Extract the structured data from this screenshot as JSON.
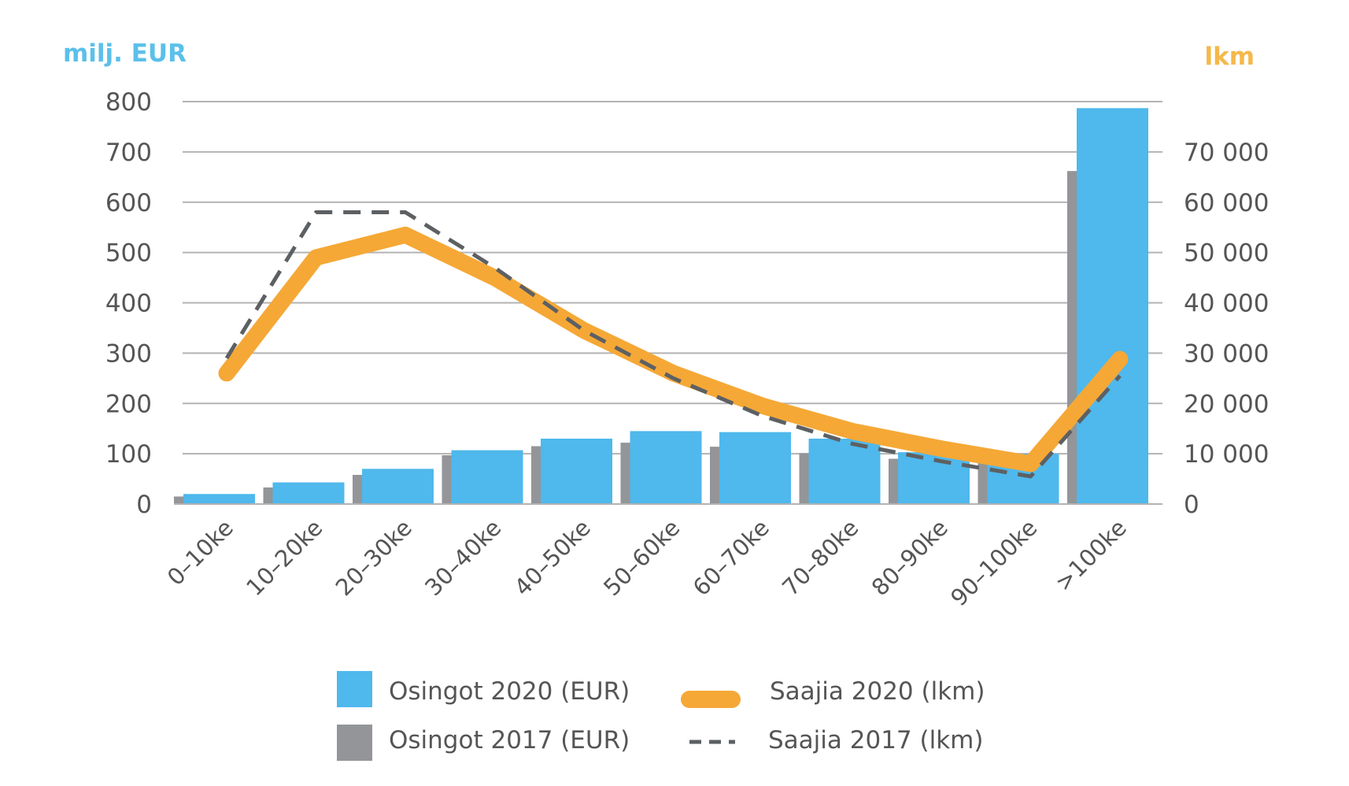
{
  "chart_data": {
    "type": "bar",
    "left_axis_unit": "milj. EUR",
    "right_axis_unit": "lkm",
    "categories": [
      "0–10ke",
      "10–20ke",
      "20–30ke",
      "30–40ke",
      "40–50ke",
      "50–60ke",
      "60–70ke",
      "70–80ke",
      "80–90ke",
      "90–100ke",
      ">100ke"
    ],
    "ylim_left": [
      0,
      800
    ],
    "yticks_left": [
      "0",
      "100",
      "200",
      "300",
      "400",
      "500",
      "600",
      "700",
      "800"
    ],
    "ylim_right": [
      0,
      80000
    ],
    "yticks_right": [
      "0",
      "10 000",
      "20 000",
      "30 000",
      "40 000",
      "50 000",
      "60 000",
      "70 000"
    ],
    "grid": true,
    "legend_position": "bottom",
    "series": [
      {
        "name": "Osingot 2020 (EUR)",
        "type": "bar",
        "axis": "left",
        "color": "#4fb8ec",
        "values": [
          20,
          43,
          70,
          107,
          130,
          145,
          143,
          130,
          103,
          100,
          787
        ]
      },
      {
        "name": "Osingot 2017 (EUR)",
        "type": "bar",
        "axis": "left",
        "color": "#939598",
        "values": [
          15,
          33,
          58,
          97,
          115,
          122,
          114,
          101,
          90,
          90,
          662
        ]
      },
      {
        "name": "Saajia 2020 (lkm)",
        "type": "line",
        "axis": "right",
        "color": "#f5a836",
        "values": [
          26000,
          49000,
          53500,
          45000,
          34500,
          26000,
          19500,
          14500,
          11000,
          8000,
          28800
        ]
      },
      {
        "name": "Saajia 2017 (lkm)",
        "type": "dashed-line",
        "axis": "right",
        "color": "#5d6063",
        "values": [
          29000,
          58000,
          58000,
          47000,
          34500,
          25000,
          17500,
          12000,
          8500,
          5500,
          25500
        ]
      }
    ]
  }
}
